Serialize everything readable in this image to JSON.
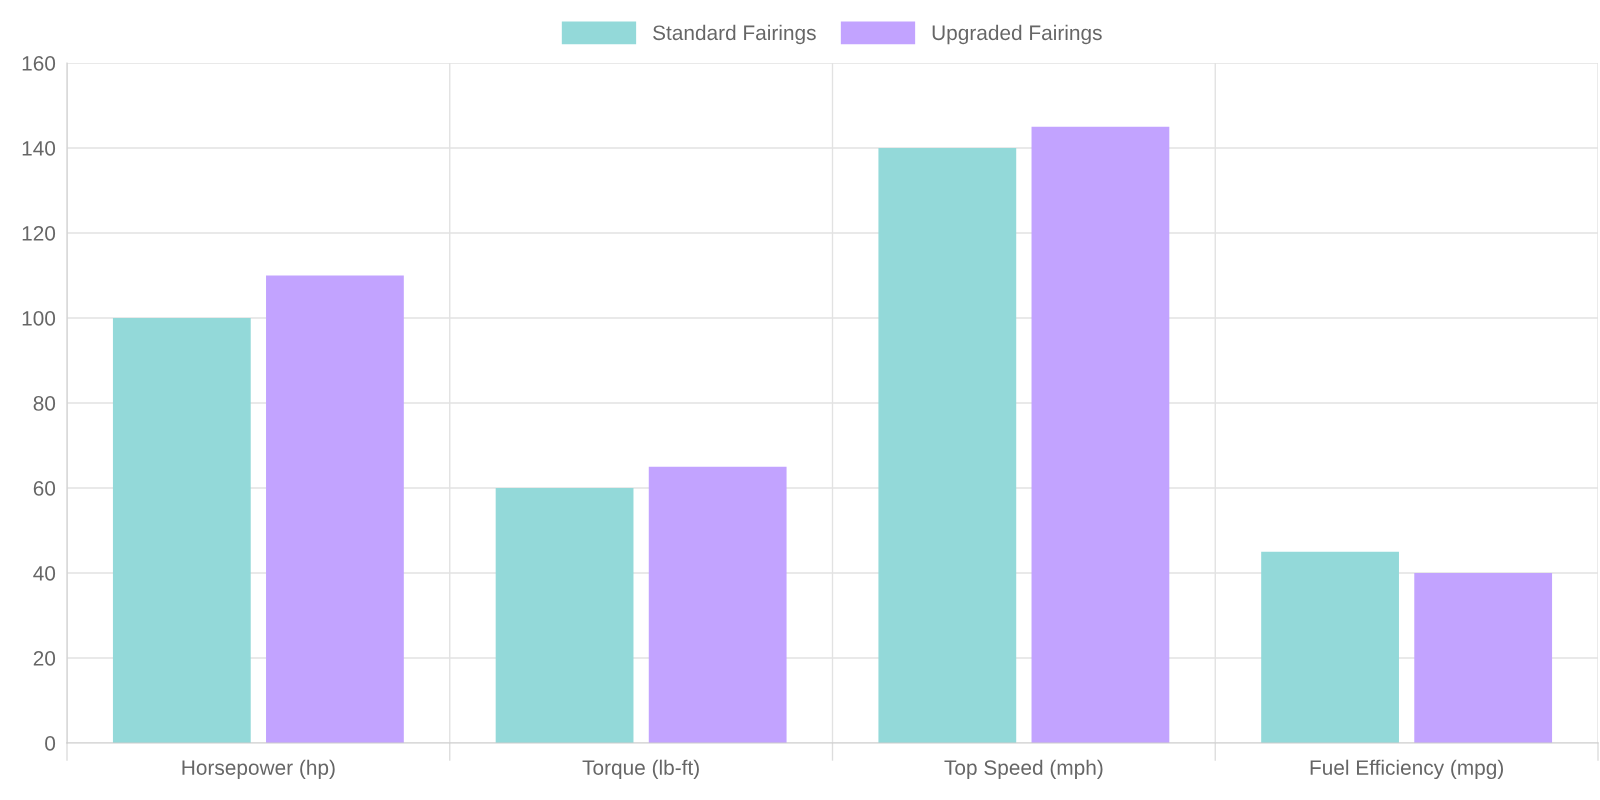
{
  "chart_data": {
    "type": "bar",
    "categories": [
      "Horsepower (hp)",
      "Torque (lb-ft)",
      "Top Speed (mph)",
      "Fuel Efficiency (mpg)"
    ],
    "series": [
      {
        "name": "Standard Fairings",
        "color": "#93d9d9",
        "values": [
          100,
          60,
          140,
          45
        ]
      },
      {
        "name": "Upgraded Fairings",
        "color": "#c2a3ff",
        "values": [
          110,
          65,
          145,
          40
        ]
      }
    ],
    "ylim": [
      0,
      160
    ],
    "yticks": [
      0,
      20,
      40,
      60,
      80,
      100,
      120,
      140,
      160
    ],
    "grid": true,
    "legend": "top"
  }
}
